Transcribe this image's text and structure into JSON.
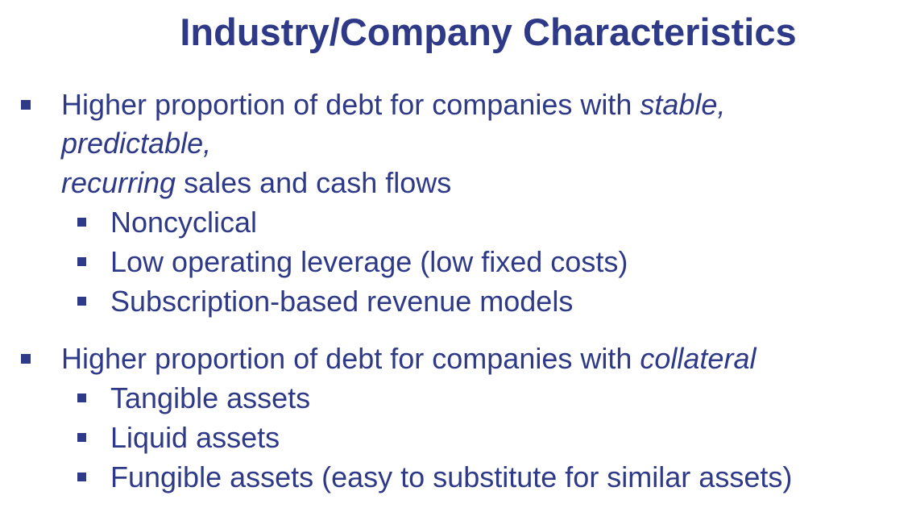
{
  "slide": {
    "title": "Industry/Company Characteristics",
    "point1": {
      "line1_a": "Higher proportion of debt for companies with ",
      "line1_em": "stable,",
      "line2_em": "predictable,",
      "line3_em": "recurring",
      "line3_b": " sales and cash flows",
      "subpoints": [
        "Noncyclical",
        "Low operating leverage (low fixed costs)",
        "Subscription-based revenue models"
      ]
    },
    "point2": {
      "line1_a": "Higher proportion of debt for companies with ",
      "line1_em": "collateral",
      "subpoints": [
        "Tangible assets",
        "Liquid assets",
        "Fungible assets (easy to substitute for similar assets)"
      ]
    },
    "accent_color": "#2e3a87",
    "bullet_icon": "square-bullet-icon"
  }
}
